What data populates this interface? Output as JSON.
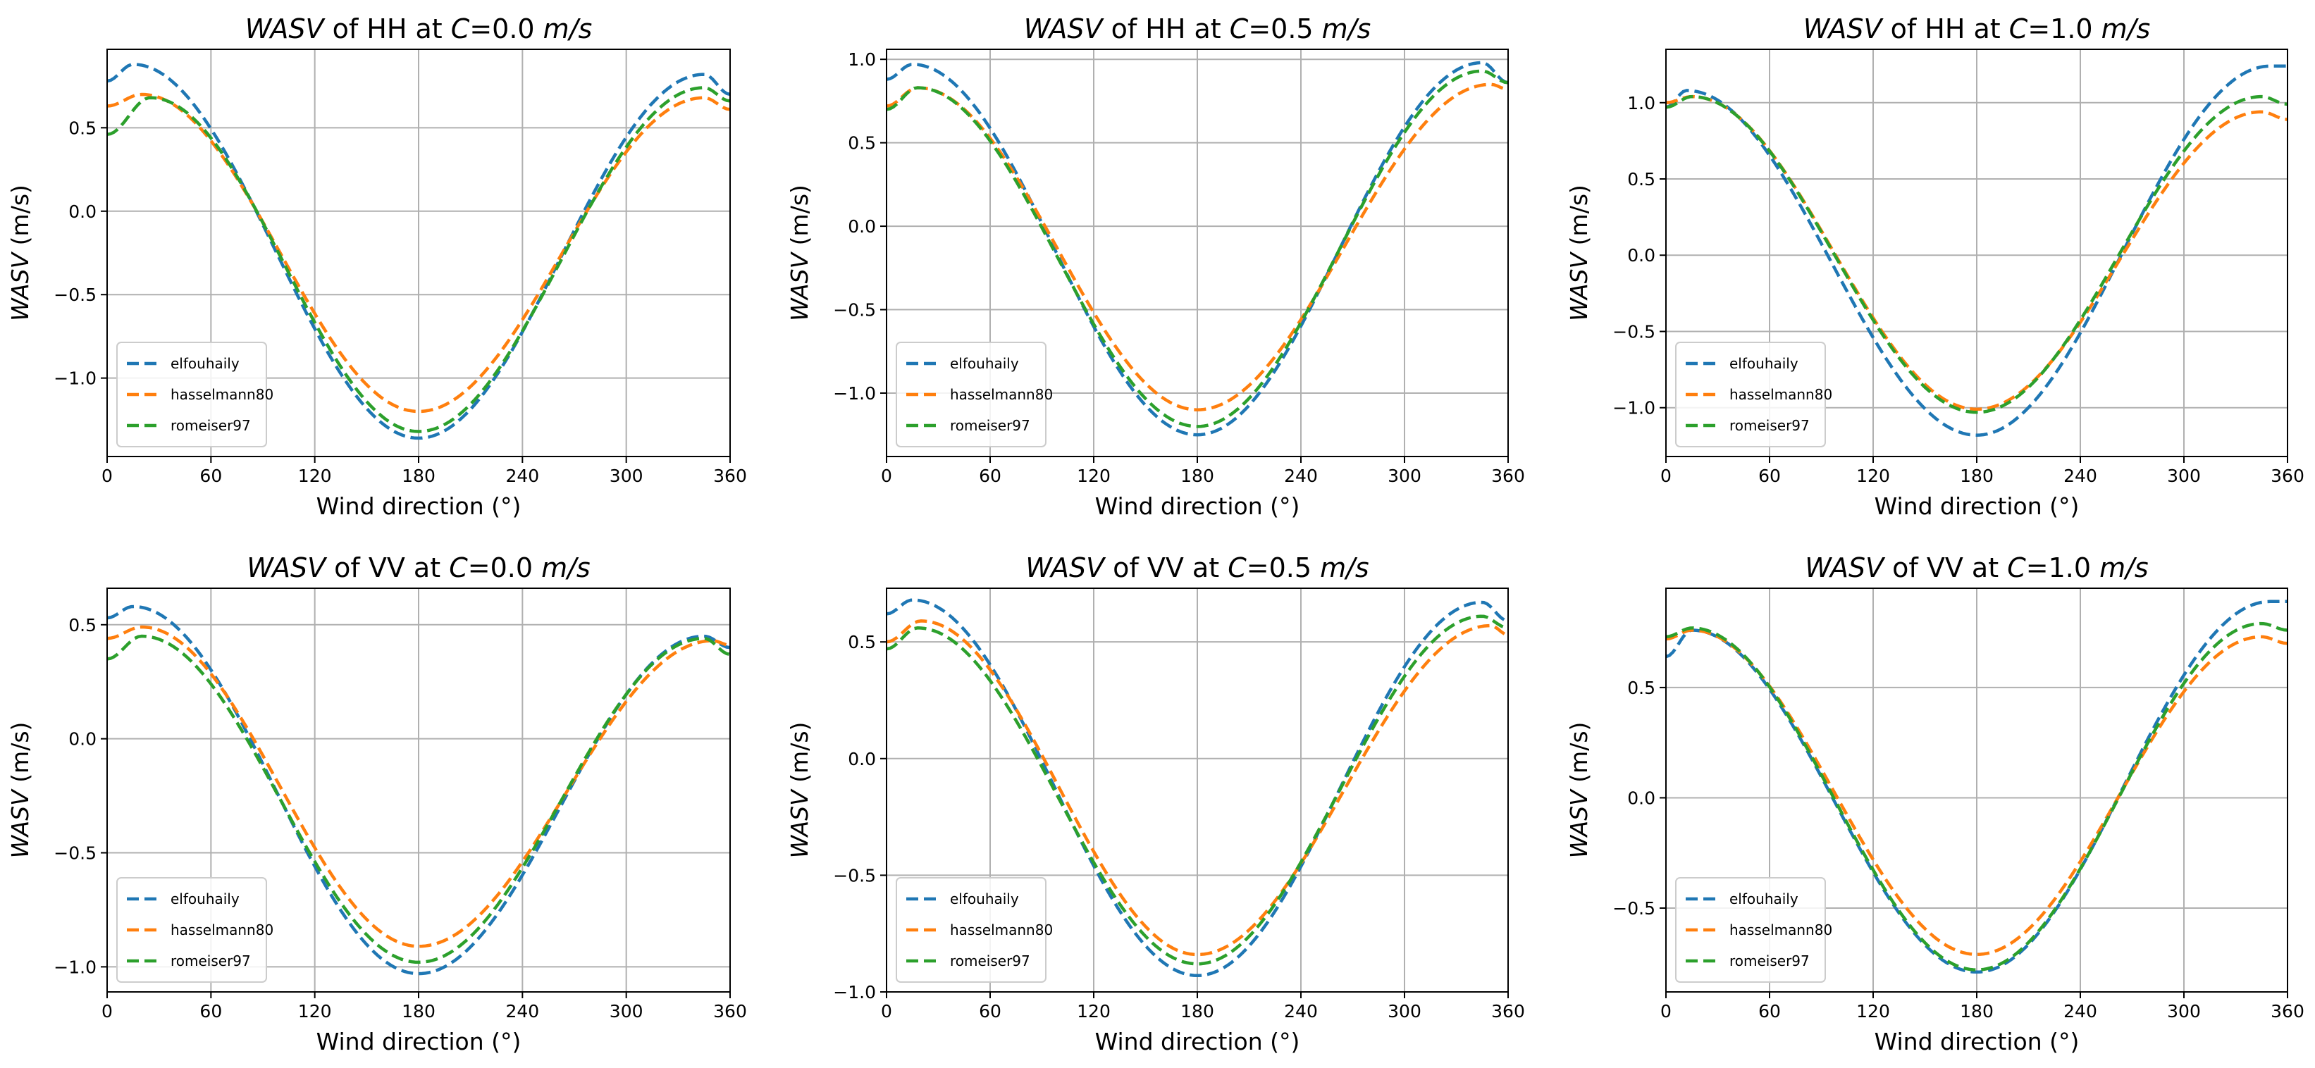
{
  "figure": {
    "x_ticks": [
      0,
      60,
      120,
      180,
      240,
      300,
      360
    ],
    "legend_location": "lower-left"
  },
  "series_styles": [
    {
      "name": "elfouhaily",
      "color": "#1f77b4"
    },
    {
      "name": "hasselmann80",
      "color": "#ff7f0e"
    },
    {
      "name": "romeiser97",
      "color": "#2ca02c"
    }
  ],
  "chart_data": [
    {
      "type": "line",
      "title_italic": "WASV",
      "title_mid": " of HH at ",
      "title_var": "C",
      "title_value": "=0.0 ",
      "title_unit": "m/s",
      "xlabel": "Wind direction (°)",
      "ylabel_italic": "WASV",
      "ylabel_rest": " (m/s)",
      "xlim": [
        0,
        360
      ],
      "ylim": [
        -1.47,
        0.97
      ],
      "yticks": [
        -1.0,
        -0.5,
        0.0,
        0.5
      ],
      "ytick_labels": [
        "−1.0",
        "−0.5",
        "0.0",
        "0.5"
      ],
      "series": [
        {
          "name": "elfouhaily",
          "peak1": [
            15,
            0.88
          ],
          "trough": [
            180,
            -1.36
          ],
          "peak2": [
            345,
            0.82
          ],
          "ends": [
            0.78,
            0.7
          ]
        },
        {
          "name": "hasselmann80",
          "peak1": [
            20,
            0.7
          ],
          "trough": [
            180,
            -1.2
          ],
          "peak2": [
            345,
            0.68
          ],
          "ends": [
            0.63,
            0.61
          ]
        },
        {
          "name": "romeiser97",
          "peak1": [
            25,
            0.68
          ],
          "trough": [
            180,
            -1.32
          ],
          "peak2": [
            345,
            0.74
          ],
          "ends": [
            0.46,
            0.66
          ]
        }
      ]
    },
    {
      "type": "line",
      "title_italic": "WASV",
      "title_mid": " of HH at ",
      "title_var": "C",
      "title_value": "=0.5 ",
      "title_unit": "m/s",
      "xlabel": "Wind direction (°)",
      "ylabel_italic": "WASV",
      "ylabel_rest": " (m/s)",
      "xlim": [
        0,
        360
      ],
      "ylim": [
        -1.38,
        1.06
      ],
      "yticks": [
        -1.0,
        -0.5,
        0.0,
        0.5,
        1.0
      ],
      "ytick_labels": [
        "−1.0",
        "−0.5",
        "0.0",
        "0.5",
        "1.0"
      ],
      "series": [
        {
          "name": "elfouhaily",
          "peak1": [
            15,
            0.97
          ],
          "trough": [
            180,
            -1.25
          ],
          "peak2": [
            345,
            0.98
          ],
          "ends": [
            0.88,
            0.86
          ]
        },
        {
          "name": "hasselmann80",
          "peak1": [
            18,
            0.83
          ],
          "trough": [
            180,
            -1.1
          ],
          "peak2": [
            350,
            0.85
          ],
          "ends": [
            0.72,
            0.82
          ]
        },
        {
          "name": "romeiser97",
          "peak1": [
            18,
            0.83
          ],
          "trough": [
            180,
            -1.2
          ],
          "peak2": [
            345,
            0.93
          ],
          "ends": [
            0.7,
            0.86
          ]
        }
      ]
    },
    {
      "type": "line",
      "title_italic": "WASV",
      "title_mid": " of HH at ",
      "title_var": "C",
      "title_value": "=1.0 ",
      "title_unit": "m/s",
      "xlabel": "Wind direction (°)",
      "ylabel_italic": "WASV",
      "ylabel_rest": " (m/s)",
      "xlim": [
        0,
        360
      ],
      "ylim": [
        -1.32,
        1.35
      ],
      "yticks": [
        -1.0,
        -0.5,
        0.0,
        0.5,
        1.0
      ],
      "ytick_labels": [
        "−1.0",
        "−0.5",
        "0.0",
        "0.5",
        "1.0"
      ],
      "series": [
        {
          "name": "elfouhaily",
          "peak1": [
            12,
            1.08
          ],
          "trough": [
            180,
            -1.18
          ],
          "peak2": [
            350,
            1.24
          ],
          "ends": [
            0.97,
            1.24
          ]
        },
        {
          "name": "hasselmann80",
          "peak1": [
            15,
            1.04
          ],
          "trough": [
            180,
            -1.01
          ],
          "peak2": [
            345,
            0.94
          ],
          "ends": [
            1.0,
            0.89
          ]
        },
        {
          "name": "romeiser97",
          "peak1": [
            15,
            1.04
          ],
          "trough": [
            180,
            -1.03
          ],
          "peak2": [
            345,
            1.04
          ],
          "ends": [
            0.97,
            0.99
          ]
        }
      ]
    },
    {
      "type": "line",
      "title_italic": "WASV",
      "title_mid": " of VV at ",
      "title_var": "C",
      "title_value": "=0.0 ",
      "title_unit": "m/s",
      "xlabel": "Wind direction (°)",
      "ylabel_italic": "WASV",
      "ylabel_rest": " (m/s)",
      "xlim": [
        0,
        360
      ],
      "ylim": [
        -1.11,
        0.66
      ],
      "yticks": [
        -1.0,
        -0.5,
        0.0,
        0.5
      ],
      "ytick_labels": [
        "−1.0",
        "−0.5",
        "0.0",
        "0.5"
      ],
      "series": [
        {
          "name": "elfouhaily",
          "peak1": [
            15,
            0.58
          ],
          "trough": [
            180,
            -1.03
          ],
          "peak2": [
            345,
            0.45
          ],
          "ends": [
            0.53,
            0.4
          ]
        },
        {
          "name": "hasselmann80",
          "peak1": [
            20,
            0.49
          ],
          "trough": [
            180,
            -0.91
          ],
          "peak2": [
            350,
            0.43
          ],
          "ends": [
            0.44,
            0.41
          ]
        },
        {
          "name": "romeiser97",
          "peak1": [
            20,
            0.45
          ],
          "trough": [
            180,
            -0.98
          ],
          "peak2": [
            345,
            0.44
          ],
          "ends": [
            0.35,
            0.37
          ]
        }
      ]
    },
    {
      "type": "line",
      "title_italic": "WASV",
      "title_mid": " of VV at ",
      "title_var": "C",
      "title_value": "=0.5 ",
      "title_unit": "m/s",
      "xlabel": "Wind direction (°)",
      "ylabel_italic": "WASV",
      "ylabel_rest": " (m/s)",
      "xlim": [
        0,
        360
      ],
      "ylim": [
        -1.0,
        0.73
      ],
      "yticks": [
        -1.0,
        -0.5,
        0.0,
        0.5
      ],
      "ytick_labels": [
        "−1.0",
        "−0.5",
        "0.0",
        "0.5"
      ],
      "series": [
        {
          "name": "elfouhaily",
          "peak1": [
            15,
            0.68
          ],
          "trough": [
            180,
            -0.93
          ],
          "peak2": [
            345,
            0.67
          ],
          "ends": [
            0.62,
            0.59
          ]
        },
        {
          "name": "hasselmann80",
          "peak1": [
            20,
            0.59
          ],
          "trough": [
            180,
            -0.84
          ],
          "peak2": [
            350,
            0.57
          ],
          "ends": [
            0.5,
            0.53
          ]
        },
        {
          "name": "romeiser97",
          "peak1": [
            18,
            0.56
          ],
          "trough": [
            180,
            -0.88
          ],
          "peak2": [
            345,
            0.61
          ],
          "ends": [
            0.47,
            0.56
          ]
        }
      ]
    },
    {
      "type": "line",
      "title_italic": "WASV",
      "title_mid": " of VV at ",
      "title_var": "C",
      "title_value": "=1.0 ",
      "title_unit": "m/s",
      "xlabel": "Wind direction (°)",
      "ylabel_italic": "WASV",
      "ylabel_rest": " (m/s)",
      "xlim": [
        0,
        360
      ],
      "ylim": [
        -0.88,
        0.95
      ],
      "yticks": [
        -0.5,
        0.0,
        0.5
      ],
      "ytick_labels": [
        "−0.5",
        "0.0",
        "0.5"
      ],
      "series": [
        {
          "name": "elfouhaily",
          "peak1": [
            15,
            0.76
          ],
          "trough": [
            180,
            -0.79
          ],
          "peak2": [
            350,
            0.89
          ],
          "ends": [
            0.64,
            0.89
          ]
        },
        {
          "name": "hasselmann80",
          "peak1": [
            15,
            0.76
          ],
          "trough": [
            180,
            -0.71
          ],
          "peak2": [
            345,
            0.73
          ],
          "ends": [
            0.72,
            0.7
          ]
        },
        {
          "name": "romeiser97",
          "peak1": [
            15,
            0.77
          ],
          "trough": [
            180,
            -0.78
          ],
          "peak2": [
            345,
            0.79
          ],
          "ends": [
            0.73,
            0.76
          ]
        }
      ]
    }
  ]
}
